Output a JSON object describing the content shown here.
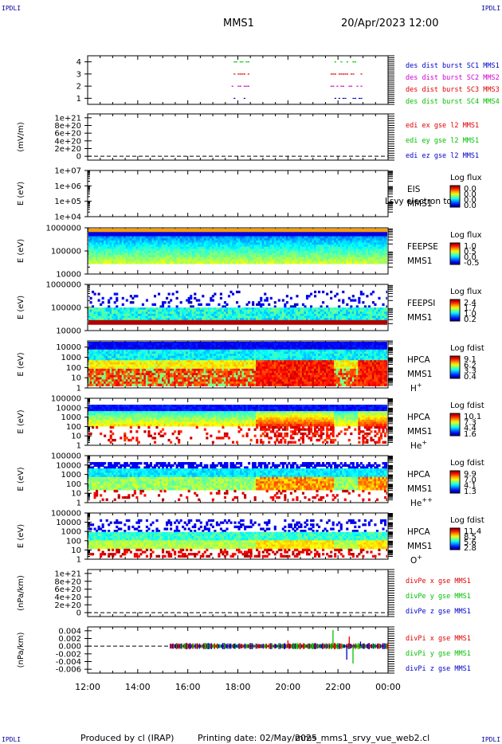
{
  "header": {
    "corner_tl": "IPDLI",
    "corner_tr": "IPDLI",
    "corner_bl": "IPDLI",
    "corner_br": "IPDLI",
    "spacecraft": "MMS1",
    "datetime": "20/Apr/2023 12:00"
  },
  "footer": {
    "produced_by": "Produced by cl (IRAP)",
    "printing_date": "Printing date: 02/May/2025",
    "script": "mms_mms1_srvy_vue_web2.cl"
  },
  "colors": {
    "blue": "#0000c8",
    "red": "#e00000",
    "green": "#00c000",
    "magenta": "#d000d0"
  },
  "chart_data": [
    {
      "type": "scatter",
      "id": "burst",
      "ylim": [
        0.5,
        4.5
      ],
      "ytick_labels": [
        "1",
        "2",
        "3",
        "4"
      ],
      "yticks": [
        1,
        2,
        3,
        4
      ],
      "series": [
        {
          "name": "des dist burst SC1 MMS1",
          "color": "#0000c8",
          "y": 1,
          "x_ranges": [
            [
              17.75,
              18.4
            ],
            [
              21.7,
              22.95
            ]
          ]
        },
        {
          "name": "des dist burst SC2 MMS2",
          "color": "#d000d0",
          "y": 2,
          "x_ranges": [
            [
              17.75,
              18.4
            ],
            [
              21.7,
              22.95
            ]
          ]
        },
        {
          "name": "des dist burst SC3 MMS3",
          "color": "#e00000",
          "y": 3,
          "x_ranges": [
            [
              17.75,
              18.4
            ],
            [
              21.7,
              22.95
            ]
          ]
        },
        {
          "name": "des dist burst SC4 MMS4",
          "color": "#00c000",
          "y": 4,
          "x_ranges": [
            [
              17.75,
              18.4
            ],
            [
              21.7,
              22.95
            ]
          ]
        }
      ]
    },
    {
      "type": "line",
      "id": "edi",
      "ylabel": "(mV/m)",
      "ylim": [
        -1e+20,
        1.1e+21
      ],
      "ytick_labels": [
        "1e+21",
        "8e+20",
        "6e+20",
        "4e+20",
        "2e+20",
        "0"
      ],
      "yticks": [
        1e+21,
        8e+20,
        6e+20,
        4e+20,
        2e+20,
        0
      ],
      "series": [
        {
          "name": "edi ex gse l2 MMS1",
          "color": "#e00000",
          "values": []
        },
        {
          "name": "edi ey gse l2 MMS1",
          "color": "#00c000",
          "values": []
        },
        {
          "name": "edi ez gse l2 MMS1",
          "color": "#0000c8",
          "values": []
        }
      ],
      "zero_line": true
    },
    {
      "type": "heatmap",
      "id": "eis",
      "ylabel": "E (eV)",
      "log": true,
      "ylim": [
        10000.0,
        10000000.0
      ],
      "ytick_labels": [
        "1e+07",
        "1e+06",
        "1e+05",
        "1e+04"
      ],
      "instrument": "EIS",
      "spacecraft": "MMS1",
      "overlay_text": "Lsvy electron to",
      "colorbar": {
        "label": "Log flux",
        "ticks": [
          "0.0",
          "0.0",
          "0.0",
          "0.0"
        ]
      },
      "x_coverage": []
    },
    {
      "type": "heatmap",
      "id": "feepse",
      "ylabel": "E (eV)",
      "log": true,
      "ylim": [
        10000,
        1000000
      ],
      "ytick_labels": [
        "1000000",
        "100000",
        "10000"
      ],
      "instrument": "FEEPSE",
      "spacecraft": "MMS1",
      "colorbar": {
        "label": "Log flux",
        "ticks": [
          "1.0",
          "0.5",
          "0.0",
          "-0.5"
        ]
      },
      "x_coverage": [
        [
          12.0,
          24.0
        ]
      ]
    },
    {
      "type": "heatmap",
      "id": "feepsi",
      "ylabel": "E (eV)",
      "log": true,
      "ylim": [
        10000,
        1000000
      ],
      "ytick_labels": [
        "1000000",
        "100000",
        "10000"
      ],
      "instrument": "FEEPSI",
      "spacecraft": "MMS1",
      "colorbar": {
        "label": "Log flux",
        "ticks": [
          "2.4",
          "1.7",
          "1.0",
          "0.2"
        ]
      },
      "x_coverage": [
        [
          12.0,
          24.0
        ]
      ]
    },
    {
      "type": "heatmap",
      "id": "hpca_h",
      "ylabel": "E (eV)",
      "log": true,
      "ylim": [
        1,
        40000
      ],
      "ytick_labels": [
        "10000",
        "1000",
        "100",
        "10",
        "1"
      ],
      "instrument": "HPCA",
      "spacecraft": "MMS1",
      "species": "H",
      "species_sup": "+",
      "colorbar": {
        "label": "Log fdist",
        "ticks": [
          "9.1",
          "6.2",
          "3.3",
          "0.4"
        ]
      },
      "x_coverage": [
        [
          12.0,
          24.0
        ]
      ],
      "enhanced_ranges": [
        [
          18.7,
          21.8
        ],
        [
          22.8,
          24.0
        ]
      ]
    },
    {
      "type": "heatmap",
      "id": "hpca_he",
      "ylabel": "E (eV)",
      "log": true,
      "ylim": [
        1,
        100000
      ],
      "ytick_labels": [
        "100000",
        "10000",
        "1000",
        "100",
        "10",
        "1"
      ],
      "instrument": "HPCA",
      "spacecraft": "MMS1",
      "species": "He",
      "species_sup": "+",
      "colorbar": {
        "label": "Log fdist",
        "ticks": [
          "10.1",
          "7.3",
          "4.4",
          "1.6"
        ]
      },
      "x_coverage": [
        [
          12.0,
          24.0
        ]
      ],
      "enhanced_ranges": [
        [
          18.7,
          21.8
        ],
        [
          22.8,
          24.0
        ]
      ]
    },
    {
      "type": "heatmap",
      "id": "hpca_hepp",
      "ylabel": "E (eV)",
      "log": true,
      "ylim": [
        1,
        100000
      ],
      "ytick_labels": [
        "100000",
        "10000",
        "1000",
        "100",
        "10",
        "1"
      ],
      "instrument": "HPCA",
      "spacecraft": "MMS1",
      "species": "He",
      "species_sup": "++",
      "colorbar": {
        "label": "Log fdist",
        "ticks": [
          "9.9",
          "7.0",
          "4.1",
          "1.3"
        ]
      },
      "x_coverage": [
        [
          12.0,
          24.0
        ]
      ],
      "enhanced_ranges": [
        [
          18.7,
          21.8
        ],
        [
          22.8,
          24.0
        ]
      ]
    },
    {
      "type": "heatmap",
      "id": "hpca_o",
      "ylabel": "E (eV)",
      "log": true,
      "ylim": [
        1,
        100000
      ],
      "ytick_labels": [
        "100000",
        "10000",
        "1000",
        "100",
        "10",
        "1"
      ],
      "instrument": "HPCA",
      "spacecraft": "MMS1",
      "species": "O",
      "species_sup": "+",
      "colorbar": {
        "label": "Log fdist",
        "ticks": [
          "11.4",
          "8.5",
          "5.6",
          "2.8"
        ]
      },
      "x_coverage": [
        [
          12.0,
          24.0
        ]
      ],
      "enhanced_ranges": [
        [
          18.7,
          21.8
        ],
        [
          22.8,
          24.0
        ]
      ]
    },
    {
      "type": "line",
      "id": "divpe",
      "ylabel": "(nPa/km)",
      "ylim": [
        -1e+20,
        1.1e+21
      ],
      "ytick_labels": [
        "1e+21",
        "8e+20",
        "6e+20",
        "4e+20",
        "2e+20",
        "0"
      ],
      "yticks": [
        1e+21,
        8e+20,
        6e+20,
        4e+20,
        2e+20,
        0
      ],
      "series": [
        {
          "name": "divPe x gse MMS1",
          "color": "#e00000",
          "values": []
        },
        {
          "name": "divPe y gse MMS1",
          "color": "#00c000",
          "values": []
        },
        {
          "name": "divPe z gse MMS1",
          "color": "#0000c8",
          "values": []
        }
      ],
      "zero_line": true
    },
    {
      "type": "line",
      "id": "divpi",
      "ylabel": "(nPa/km)",
      "ylim": [
        -0.007,
        0.005
      ],
      "ytick_labels": [
        "0.004",
        "0.002",
        "0.000",
        "-0.002",
        "-0.004",
        "-0.006"
      ],
      "yticks": [
        0.004,
        0.002,
        0.0,
        -0.002,
        -0.004,
        -0.006
      ],
      "series": [
        {
          "name": "divPi x gse MMS1",
          "color": "#e00000"
        },
        {
          "name": "divPi y gse MMS1",
          "color": "#00c000"
        },
        {
          "name": "divPi z gse MMS1",
          "color": "#0000c8"
        }
      ],
      "x_coverage": [
        [
          15.3,
          24.0
        ]
      ],
      "spikes": [
        {
          "x": 20.0,
          "y": 0.0015
        },
        {
          "x": 21.8,
          "y": 0.0042
        },
        {
          "x": 22.35,
          "y": -0.0035
        },
        {
          "x": 22.45,
          "y": 0.0025
        },
        {
          "x": 22.6,
          "y": -0.0045
        },
        {
          "x": 22.9,
          "y": 0.0012
        }
      ],
      "zero_line": true
    }
  ],
  "x_axis": {
    "range": [
      12,
      24
    ],
    "ticks": [
      12,
      14,
      16,
      18,
      20,
      22,
      24
    ],
    "tick_labels": [
      "12:00",
      "14:00",
      "16:00",
      "18:00",
      "20:00",
      "22:00",
      "00:00"
    ]
  }
}
